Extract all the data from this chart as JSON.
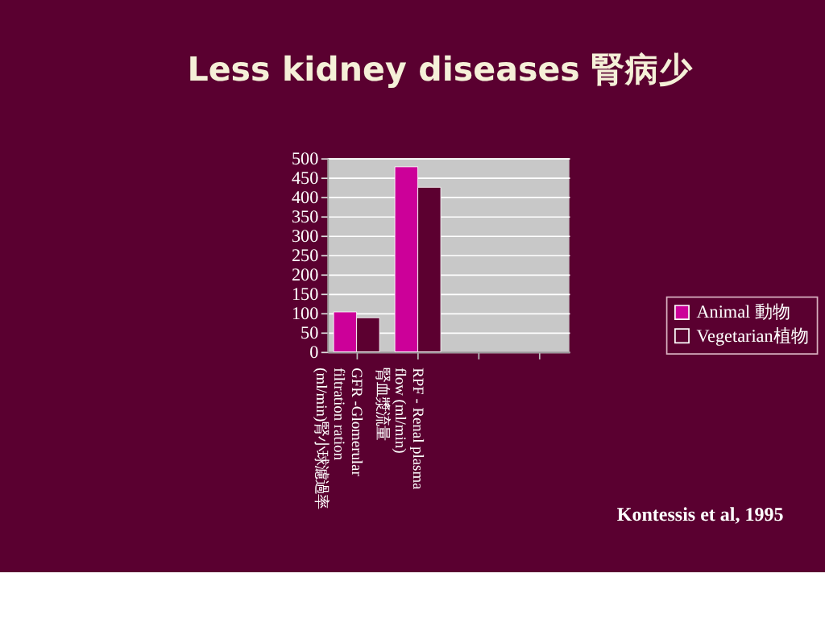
{
  "chart_data": {
    "type": "bar",
    "title": "Less kidney diseases 腎病少",
    "categories": [
      "GFR -Glomerular\nfiltration ration\n(ml/min)腎小球濾過率",
      "RPF - Renal plasma\nflow (ml/min)\n腎血漿流量",
      null,
      null
    ],
    "series": [
      {
        "name": "Animal 動物",
        "color": "#cc0099",
        "values": [
          103,
          478,
          null,
          null
        ]
      },
      {
        "name": "Vegetarian植物",
        "color": "#5c0030",
        "values": [
          88,
          425,
          null,
          null
        ]
      }
    ],
    "ylim": [
      0,
      500
    ],
    "yticks": [
      0,
      50,
      100,
      150,
      200,
      250,
      300,
      350,
      400,
      450,
      500
    ],
    "grid": "y",
    "legend": "right",
    "annotations": [
      "Kontessis et al, 1995"
    ]
  }
}
